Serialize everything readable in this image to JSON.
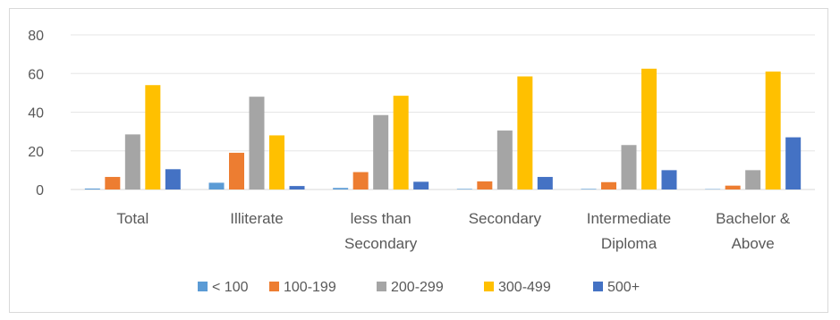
{
  "chart_data": {
    "type": "bar",
    "categories": [
      [
        "Total"
      ],
      [
        "Illiterate"
      ],
      [
        "less than",
        "Secondary"
      ],
      [
        "Secondary"
      ],
      [
        "Intermediate",
        "Diploma"
      ],
      [
        "Bachelor &",
        "Above"
      ]
    ],
    "series": [
      {
        "name": "< 100",
        "color": "#5B9BD5",
        "values": [
          0.5,
          3.5,
          0.8,
          0.3,
          0.3,
          0.2
        ]
      },
      {
        "name": "100-199",
        "color": "#ED7D31",
        "values": [
          6.5,
          19,
          9,
          4.2,
          3.8,
          2
        ]
      },
      {
        "name": "200-299",
        "color": "#A5A5A5",
        "values": [
          28.5,
          48,
          38.5,
          30.5,
          23,
          10
        ]
      },
      {
        "name": "300-499",
        "color": "#FFC000",
        "values": [
          54,
          28,
          48.5,
          58.5,
          62.5,
          61
        ]
      },
      {
        "name": "500+",
        "color": "#4472C4",
        "values": [
          10.5,
          1.8,
          4,
          6.5,
          10,
          27
        ]
      }
    ],
    "yticks": [
      "0",
      "20",
      "40",
      "60",
      "80"
    ],
    "ylim": [
      0,
      80
    ],
    "grid": true,
    "legend_position": "bottom"
  }
}
